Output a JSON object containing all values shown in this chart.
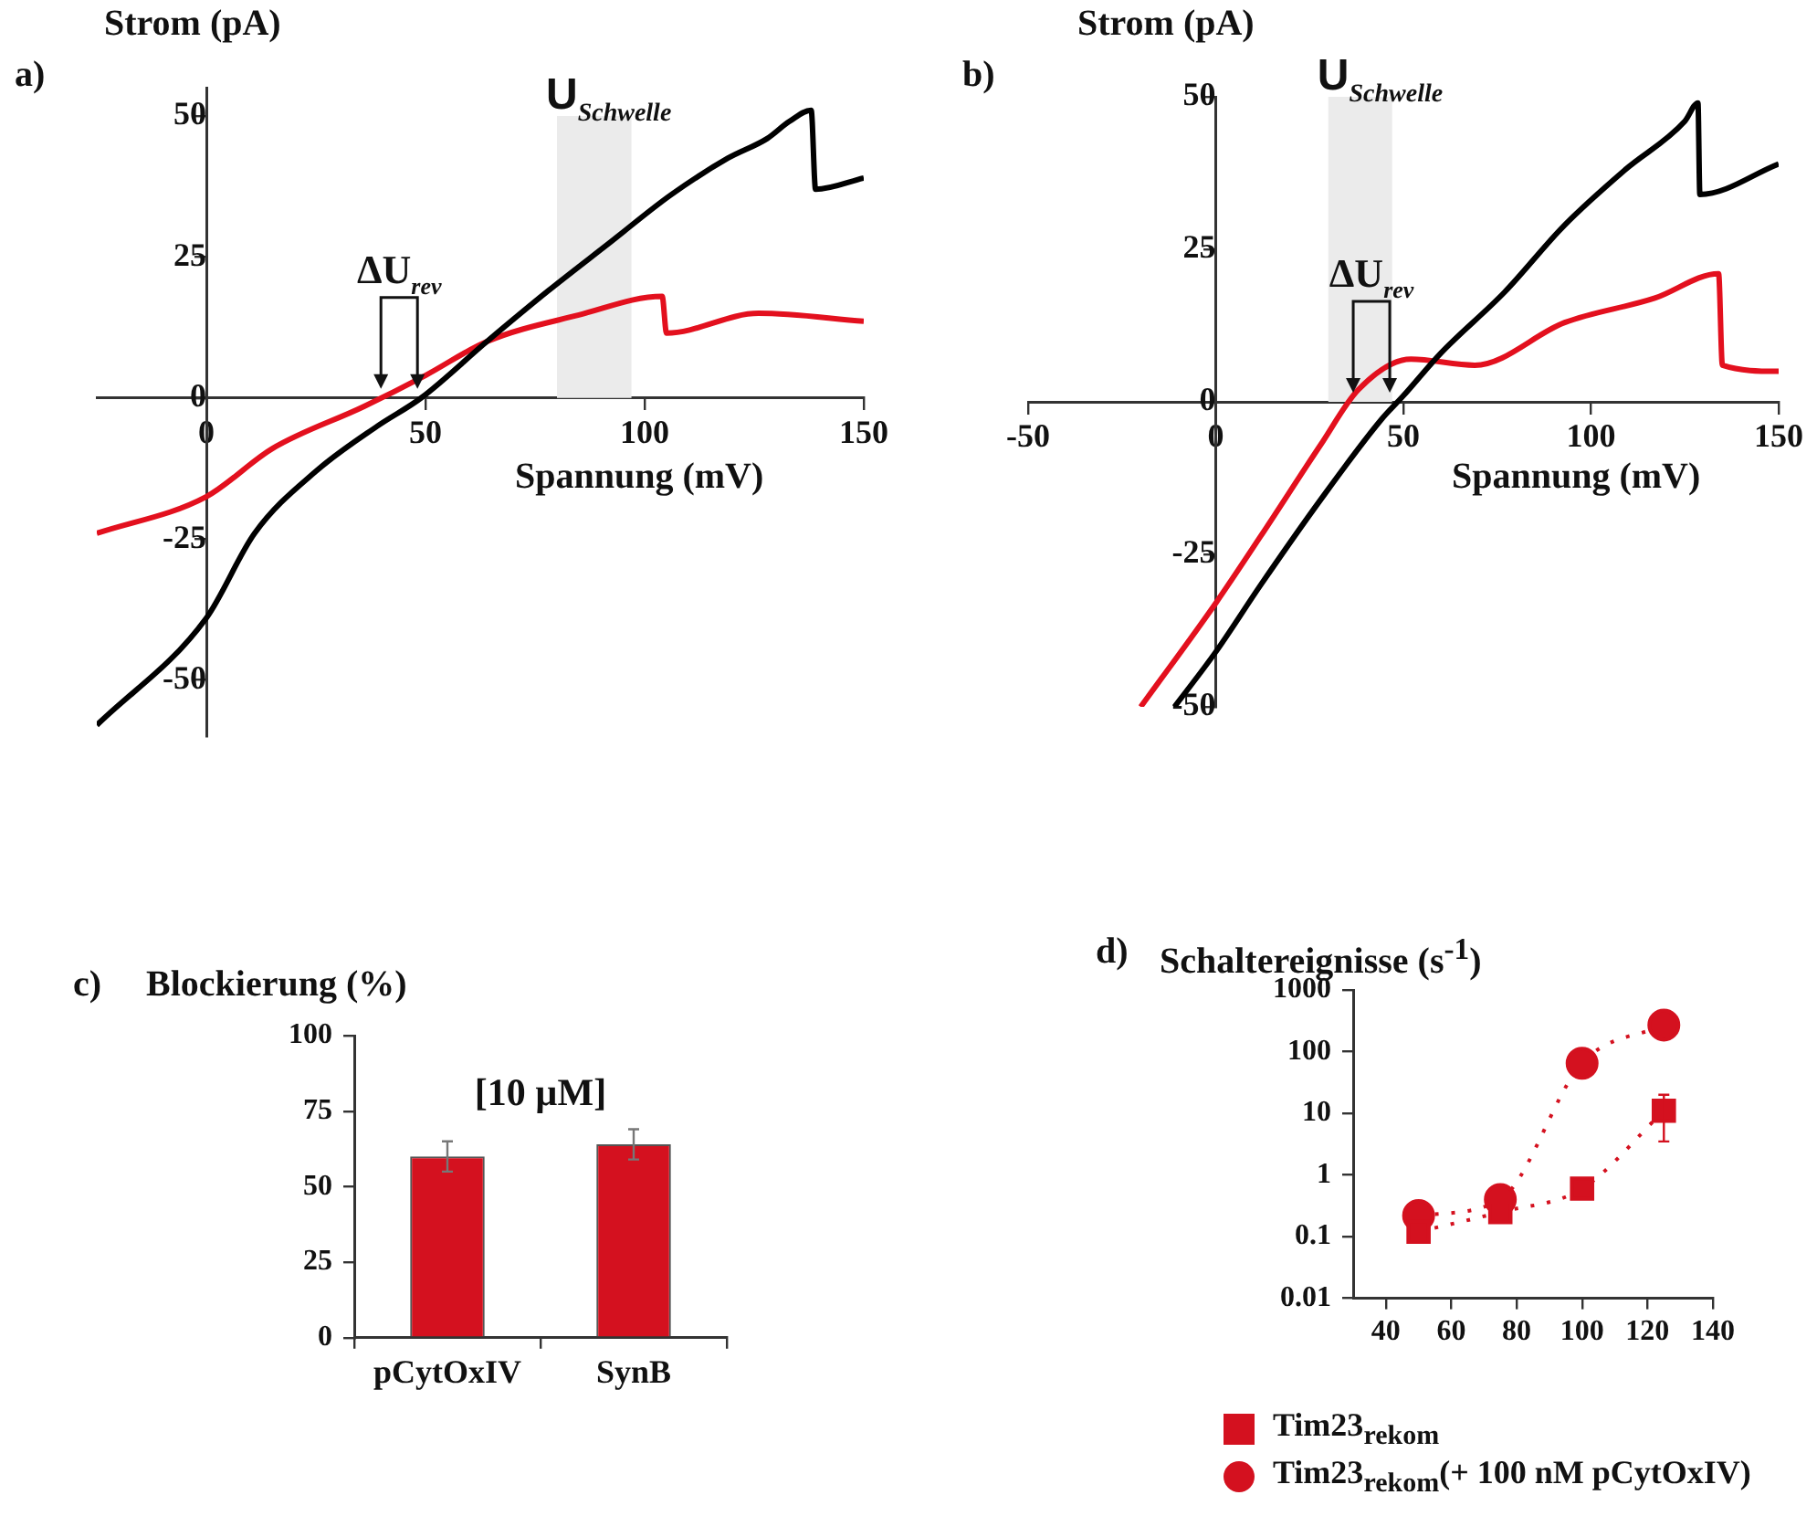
{
  "chart_data": [
    {
      "type": "line",
      "title": "a)",
      "xlabel": "Spannung (mV)",
      "ylabel": "Strom (pA)",
      "xlim": [
        -25,
        150
      ],
      "ylim": [
        -60,
        55
      ],
      "xticks": [
        0,
        50,
        100,
        150
      ],
      "yticks": [
        -50,
        -25,
        0,
        25,
        50
      ],
      "series": [
        {
          "color": "#000000",
          "x": [
            -25,
            0,
            11,
            25,
            39,
            49,
            64,
            78,
            92,
            106,
            119,
            128,
            133,
            138,
            139,
            150
          ],
          "values": [
            -58,
            -39,
            -24,
            -13,
            -5,
            0,
            10,
            19,
            27.5,
            36,
            42.5,
            46,
            49,
            51,
            37,
            39
          ]
        },
        {
          "color": "#e3101e",
          "x": [
            -25,
            0,
            15,
            36,
            50,
            64,
            85,
            104,
            105,
            126,
            150
          ],
          "values": [
            -24,
            -17.5,
            -9,
            -1.5,
            4,
            10,
            14.7,
            18,
            11.5,
            15,
            13.6
          ]
        }
      ],
      "bands": [
        {
          "axis": "x",
          "from": 80,
          "to": 97,
          "label": "U$_{Schwelle}$",
          "color": "#ebebeb"
        }
      ],
      "annotations": [
        {
          "text": "ΔU$_{rev}$",
          "x": 44,
          "y": 0
        }
      ]
    },
    {
      "type": "line",
      "title": "b)",
      "xlabel": "Spannung (mV)",
      "ylabel": "Strom (pA)",
      "xlim": [
        -50,
        150
      ],
      "ylim": [
        -50,
        50
      ],
      "xticks": [
        -50,
        0,
        50,
        100,
        150
      ],
      "yticks": [
        -50,
        -25,
        0,
        25,
        50
      ],
      "series": [
        {
          "color": "#000000",
          "x": [
            -11,
            0,
            12,
            28,
            44,
            50,
            60,
            77,
            93,
            109,
            125,
            128.5,
            129,
            150
          ],
          "values": [
            -50,
            -41,
            -30,
            -16,
            -3,
            1,
            8,
            18,
            29,
            38,
            46,
            49,
            34,
            39
          ]
        },
        {
          "color": "#e3101e",
          "x": [
            -20,
            0,
            12,
            28,
            38,
            52,
            69,
            93,
            117,
            134,
            135,
            150
          ],
          "values": [
            -50,
            -33,
            -22,
            -7,
            2,
            7,
            6,
            13,
            17,
            21,
            6,
            5
          ]
        }
      ],
      "bands": [
        {
          "axis": "x",
          "from": 30,
          "to": 47,
          "label": "U$_{Schwelle}$",
          "color": "#ebebeb"
        }
      ],
      "annotations": [
        {
          "text": "ΔU$_{rev}$",
          "x": 41.5,
          "y": 0
        }
      ]
    },
    {
      "type": "bar",
      "title": "c)",
      "ylabel": "Blockierung (%)",
      "categories": [
        "pCytOxIV",
        "SynB"
      ],
      "values": [
        60,
        64
      ],
      "errors": [
        5,
        5
      ],
      "color": "#d4111f",
      "ylim": [
        0,
        100
      ],
      "yticks": [
        0,
        25,
        50,
        75,
        100
      ],
      "annotations": [
        "[10 µM]"
      ]
    },
    {
      "type": "line",
      "title": "d)",
      "ylabel": "Schaltereignisse (s$^{-1}$)",
      "log": "y",
      "xlim": [
        30,
        140
      ],
      "xticks": [
        40,
        60,
        80,
        100,
        120,
        140
      ],
      "ylim": [
        0.01,
        1000
      ],
      "yticks": [
        0.01,
        0.1,
        1,
        10,
        100,
        1000
      ],
      "line_style": "dotted",
      "legend": "bottom",
      "series": [
        {
          "name": "Tim23$_{rekom}$",
          "color": "#d4111f",
          "marker": "square",
          "x": [
            50,
            75,
            100,
            125
          ],
          "values": [
            0.12,
            0.25,
            0.6,
            11
          ],
          "errors": [
            null,
            null,
            null,
            [
              3.5,
              20
            ]
          ]
        },
        {
          "name": "Tim23$_{rekom}$(+ 100 nM pCytOxIV)",
          "color": "#d4111f",
          "marker": "circle",
          "x": [
            50,
            75,
            100,
            125
          ],
          "values": [
            0.22,
            0.4,
            65,
            270
          ]
        }
      ]
    }
  ]
}
